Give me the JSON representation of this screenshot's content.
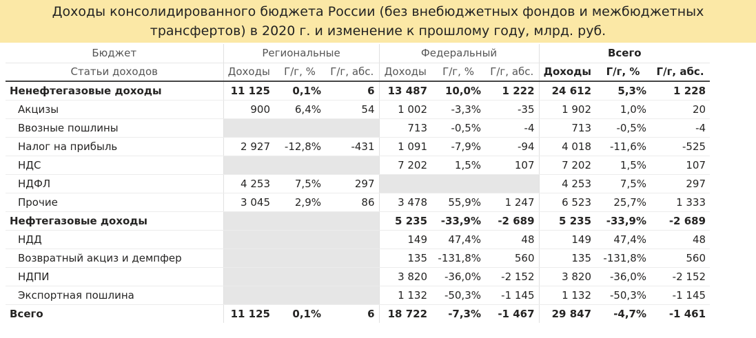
{
  "title": "Доходы консолидированного бюджета России (без внебюджетных фондов и межбюджетных трансфертов) в 2020 г. и изменение к прошлому году, млрд. руб.",
  "header": {
    "budget_label": "Бюджет",
    "regional": "Региональные",
    "federal": "Федеральный",
    "total": "Всего",
    "items_label": "Статьи доходов",
    "col_income": "Доходы",
    "col_pct": "Г/г, %",
    "col_abs": "Г/г, абс."
  },
  "rows": [
    {
      "name": "Ненефтегазовые доходы",
      "type": "group",
      "r": [
        "11 125",
        "0,1%",
        "6"
      ],
      "f": [
        "13 487",
        "10,0%",
        "1 222"
      ],
      "t": [
        "24 612",
        "5,3%",
        "1 228"
      ]
    },
    {
      "name": "Акцизы",
      "type": "child",
      "r": [
        "900",
        "6,4%",
        "54"
      ],
      "f": [
        "1 002",
        "-3,3%",
        "-35"
      ],
      "t": [
        "1 902",
        "1,0%",
        "20"
      ]
    },
    {
      "name": "Ввозные пошлины",
      "type": "child",
      "r": null,
      "f": [
        "713",
        "-0,5%",
        "-4"
      ],
      "t": [
        "713",
        "-0,5%",
        "-4"
      ]
    },
    {
      "name": "Налог на прибыль",
      "type": "child",
      "r": [
        "2 927",
        "-12,8%",
        "-431"
      ],
      "f": [
        "1 091",
        "-7,9%",
        "-94"
      ],
      "t": [
        "4 018",
        "-11,6%",
        "-525"
      ]
    },
    {
      "name": "НДС",
      "type": "child",
      "r": null,
      "f": [
        "7 202",
        "1,5%",
        "107"
      ],
      "t": [
        "7 202",
        "1,5%",
        "107"
      ]
    },
    {
      "name": "НДФЛ",
      "type": "child",
      "r": [
        "4 253",
        "7,5%",
        "297"
      ],
      "f": null,
      "t": [
        "4 253",
        "7,5%",
        "297"
      ]
    },
    {
      "name": "Прочие",
      "type": "child",
      "r": [
        "3 045",
        "2,9%",
        "86"
      ],
      "f": [
        "3 478",
        "55,9%",
        "1 247"
      ],
      "t": [
        "6 523",
        "25,7%",
        "1 333"
      ]
    },
    {
      "name": "Нефтегазовые доходы",
      "type": "group",
      "r": null,
      "f": [
        "5 235",
        "-33,9%",
        "-2 689"
      ],
      "t": [
        "5 235",
        "-33,9%",
        "-2 689"
      ]
    },
    {
      "name": "НДД",
      "type": "child",
      "r": null,
      "f": [
        "149",
        "47,4%",
        "48"
      ],
      "t": [
        "149",
        "47,4%",
        "48"
      ]
    },
    {
      "name": "Возвратный акциз и демпфер",
      "type": "child",
      "r": null,
      "f": [
        "135",
        "-131,8%",
        "560"
      ],
      "t": [
        "135",
        "-131,8%",
        "560"
      ]
    },
    {
      "name": "НДПИ",
      "type": "child",
      "r": null,
      "f": [
        "3 820",
        "-36,0%",
        "-2 152"
      ],
      "t": [
        "3 820",
        "-36,0%",
        "-2 152"
      ]
    },
    {
      "name": "Экспортная пошлина",
      "type": "child",
      "r": null,
      "f": [
        "1 132",
        "-50,3%",
        "-1 145"
      ],
      "t": [
        "1 132",
        "-50,3%",
        "-1 145"
      ]
    },
    {
      "name": "Всего",
      "type": "total",
      "r": [
        "11 125",
        "0,1%",
        "6"
      ],
      "f": [
        "18 722",
        "-7,3%",
        "-1 467"
      ],
      "t": [
        "29 847",
        "-4,7%",
        "-1 461"
      ]
    }
  ]
}
